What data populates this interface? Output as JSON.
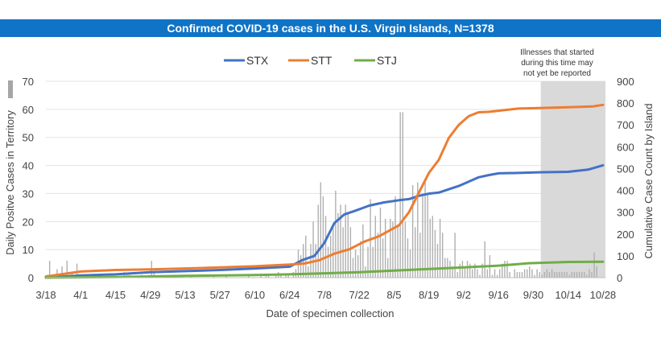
{
  "title": "Confirmed COVID-19 cases in the U.S. Virgin Islands, N=1378",
  "chart_data": {
    "type": "line",
    "title": "Confirmed COVID-19 cases in the U.S. Virgin Islands, N=1378",
    "xlabel": "Date of specimen collection",
    "ylabel_left": "Daily Positve Cases in Territory",
    "ylabel_right": "Cumulative Case Count by Island",
    "x_ticks": [
      "3/18",
      "4/1",
      "4/15",
      "4/29",
      "5/13",
      "5/27",
      "6/10",
      "6/24",
      "7/8",
      "7/22",
      "8/5",
      "8/19",
      "9/2",
      "9/16",
      "9/30",
      "10/14",
      "10/28"
    ],
    "ylim_left": [
      0,
      70
    ],
    "yticks_left": [
      "0",
      "10",
      "20",
      "30",
      "40",
      "50",
      "60",
      "70"
    ],
    "ylim_right": [
      0,
      900
    ],
    "yticks_right": [
      "0",
      "100",
      "200",
      "300",
      "400",
      "500",
      "600",
      "700",
      "800",
      "900"
    ],
    "legend_position": "top",
    "shaded_note": "Illnesses that started during this time may not yet be reported",
    "shaded_note_lines": [
      "Illnesses that started",
      "during this time may",
      "not yet be reported"
    ],
    "shaded_region_days": [
      199,
      225
    ],
    "series": [
      {
        "name": "STX",
        "color": "#4472c4",
        "axis": "right",
        "points": [
          [
            0,
            0
          ],
          [
            14,
            10
          ],
          [
            28,
            15
          ],
          [
            42,
            25
          ],
          [
            56,
            30
          ],
          [
            70,
            35
          ],
          [
            84,
            42
          ],
          [
            98,
            50
          ],
          [
            103,
            80
          ],
          [
            108,
            100
          ],
          [
            112,
            160
          ],
          [
            116,
            250
          ],
          [
            120,
            290
          ],
          [
            124,
            305
          ],
          [
            130,
            330
          ],
          [
            136,
            345
          ],
          [
            142,
            355
          ],
          [
            146,
            360
          ],
          [
            150,
            375
          ],
          [
            154,
            385
          ],
          [
            158,
            390
          ],
          [
            162,
            405
          ],
          [
            166,
            420
          ],
          [
            170,
            440
          ],
          [
            174,
            460
          ],
          [
            178,
            470
          ],
          [
            182,
            478
          ],
          [
            190,
            480
          ],
          [
            198,
            483
          ],
          [
            210,
            485
          ],
          [
            218,
            495
          ],
          [
            224,
            515
          ]
        ]
      },
      {
        "name": "STT",
        "color": "#ed7d31",
        "axis": "right",
        "points": [
          [
            0,
            5
          ],
          [
            14,
            28
          ],
          [
            28,
            35
          ],
          [
            42,
            38
          ],
          [
            56,
            42
          ],
          [
            70,
            47
          ],
          [
            84,
            52
          ],
          [
            98,
            60
          ],
          [
            104,
            65
          ],
          [
            110,
            80
          ],
          [
            116,
            110
          ],
          [
            122,
            130
          ],
          [
            128,
            165
          ],
          [
            134,
            190
          ],
          [
            138,
            215
          ],
          [
            142,
            240
          ],
          [
            146,
            300
          ],
          [
            150,
            390
          ],
          [
            154,
            480
          ],
          [
            158,
            540
          ],
          [
            162,
            640
          ],
          [
            166,
            700
          ],
          [
            170,
            740
          ],
          [
            174,
            758
          ],
          [
            178,
            760
          ],
          [
            182,
            765
          ],
          [
            190,
            775
          ],
          [
            200,
            778
          ],
          [
            210,
            781
          ],
          [
            220,
            785
          ],
          [
            224,
            792
          ]
        ]
      },
      {
        "name": "STJ",
        "color": "#70ad47",
        "axis": "right",
        "points": [
          [
            0,
            0
          ],
          [
            28,
            3
          ],
          [
            56,
            8
          ],
          [
            84,
            12
          ],
          [
            98,
            15
          ],
          [
            112,
            20
          ],
          [
            126,
            25
          ],
          [
            140,
            32
          ],
          [
            154,
            40
          ],
          [
            168,
            47
          ],
          [
            182,
            55
          ],
          [
            194,
            66
          ],
          [
            210,
            72
          ],
          [
            224,
            73
          ]
        ]
      }
    ],
    "daily_cases": [
      1,
      6,
      0,
      1,
      3,
      1,
      4,
      0,
      6,
      1,
      2,
      1,
      5,
      1,
      0,
      1,
      1,
      1,
      1,
      0,
      0,
      1,
      1,
      0,
      0,
      1,
      1,
      1,
      0,
      0,
      0,
      2,
      1,
      1,
      0,
      0,
      0,
      0,
      1,
      0,
      0,
      1,
      6,
      2,
      0,
      0,
      1,
      0,
      0,
      0,
      0,
      0,
      0,
      1,
      1,
      0,
      0,
      0,
      1,
      0,
      0,
      0,
      0,
      0,
      0,
      0,
      0,
      1,
      0,
      0,
      0,
      0,
      1,
      0,
      0,
      0,
      0,
      0,
      0,
      0,
      0,
      1,
      0,
      0,
      0,
      0,
      1,
      0,
      1,
      1,
      0,
      0,
      1,
      2,
      1,
      0,
      1,
      1,
      0,
      2,
      3,
      10,
      8,
      12,
      15,
      4,
      12,
      20,
      12,
      26,
      34,
      29,
      22,
      11,
      15,
      18,
      31,
      23,
      26,
      18,
      26,
      23,
      18,
      7,
      10,
      8,
      13,
      19,
      4,
      11,
      28,
      11,
      22,
      16,
      25,
      14,
      21,
      7,
      21,
      20,
      29,
      19,
      59,
      59,
      20,
      14,
      10,
      33,
      18,
      34,
      16,
      30,
      34,
      30,
      21,
      22,
      17,
      12,
      21,
      16,
      7,
      7,
      6,
      4,
      16,
      2,
      5,
      6,
      4,
      6,
      5,
      3,
      5,
      3,
      1,
      5,
      13,
      3,
      8,
      1,
      3,
      1,
      3,
      5,
      6,
      6,
      2,
      0,
      3,
      2,
      2,
      2,
      3,
      3,
      4,
      3,
      1,
      3,
      2,
      1,
      2,
      3,
      2,
      3,
      2,
      2,
      2,
      2,
      2,
      2,
      1,
      2,
      2,
      2,
      2,
      2,
      2,
      1,
      3,
      2,
      9,
      4
    ]
  }
}
